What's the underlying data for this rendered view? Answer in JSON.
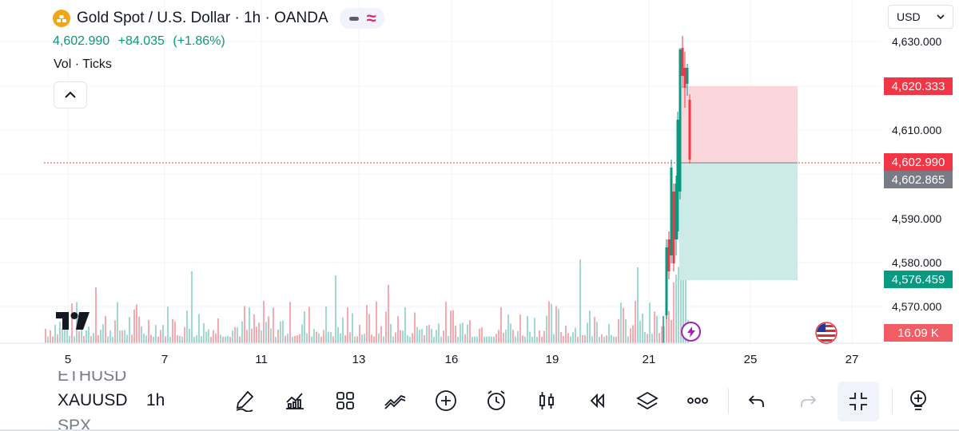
{
  "header": {
    "title": "Gold Spot / U.S. Dollar · 1h · OANDA",
    "price": "4,602.990",
    "change": "+84.035",
    "change_pct": "(+1.86%)",
    "volume_label": "Vol · Ticks"
  },
  "currency_selector": {
    "value": "USD"
  },
  "price_axis": {
    "ticks": [
      "4,630.000",
      "4,610.000",
      "4,590.000",
      "4,580.000",
      "4,570.000"
    ],
    "labels": {
      "stop": "4,620.333",
      "last": "4,602.990",
      "entry": "4,602.865",
      "target": "4,576.459",
      "volume": "16.09 K"
    }
  },
  "time_axis": {
    "labels": [
      "5",
      "7",
      "11",
      "13",
      "16",
      "19",
      "21",
      "25",
      "27"
    ]
  },
  "colors": {
    "up": "#089981",
    "down": "#f23645",
    "entry": "#787b86",
    "stop_zone": "#fbd6da",
    "target_zone": "#cdebe6",
    "event": "#9c27b0"
  },
  "bottom_bar": {
    "symbols": [
      "ETHUSD",
      "XAUUSD",
      "SPX"
    ],
    "timeframe": "1h",
    "tools": [
      "brush-icon",
      "indicators-icon",
      "layout-grid-icon",
      "compare-icon",
      "add-circle-icon",
      "alarm-clock-icon",
      "candles-icon",
      "replay-icon",
      "layers-icon",
      "more-icon",
      "undo-icon",
      "redo-icon",
      "fullscreen-exit-icon",
      "object-tree-icon"
    ]
  }
}
